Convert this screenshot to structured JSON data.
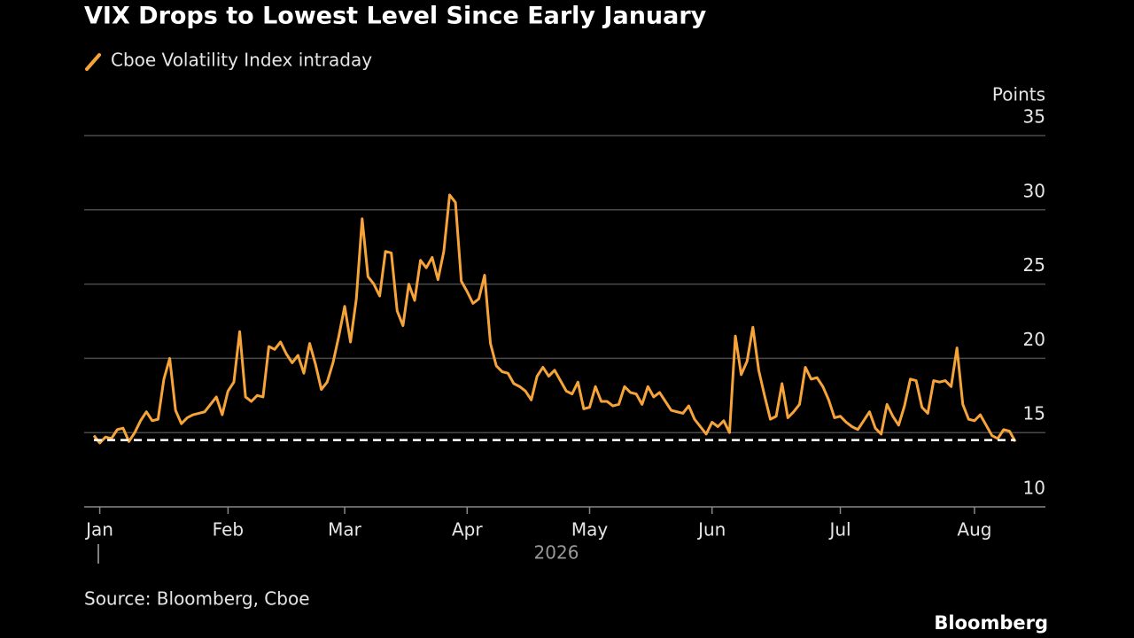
{
  "chart_data": {
    "type": "line",
    "title": "VIX Drops to Lowest Level Since Early January",
    "y_axis_label": "Points",
    "x_axis_label": "2026",
    "source": "Source: Bloomberg, Cboe",
    "brand": "Bloomberg",
    "series": [
      {
        "name": "Cboe Volatility Index intraday",
        "color": "#f6a43a",
        "values": [
          14.8,
          14.3,
          14.7,
          14.6,
          15.2,
          15.3,
          14.4,
          15.0,
          15.8,
          16.4,
          15.8,
          15.9,
          18.6,
          20.0,
          16.5,
          15.6,
          16.0,
          16.2,
          16.3,
          16.4,
          16.9,
          17.4,
          16.2,
          17.8,
          18.4,
          21.8,
          17.4,
          17.1,
          17.5,
          17.4,
          20.8,
          20.6,
          21.1,
          20.3,
          19.7,
          20.2,
          19.0,
          21.0,
          19.6,
          17.9,
          18.4,
          19.7,
          21.5,
          23.5,
          21.1,
          24.0,
          29.4,
          25.5,
          25.0,
          24.2,
          27.2,
          27.1,
          23.2,
          22.2,
          25.0,
          23.9,
          26.6,
          26.1,
          26.8,
          25.3,
          27.2,
          31.0,
          30.5,
          25.2,
          24.5,
          23.7,
          24.0,
          25.6,
          21.0,
          19.5,
          19.1,
          19.0,
          18.3,
          18.1,
          17.8,
          17.2,
          18.8,
          19.4,
          18.8,
          19.2,
          18.5,
          17.8,
          17.6,
          18.4,
          16.6,
          16.7,
          18.1,
          17.1,
          17.1,
          16.8,
          16.9,
          18.1,
          17.7,
          17.6,
          16.9,
          18.1,
          17.4,
          17.7,
          17.1,
          16.5,
          16.4,
          16.3,
          16.8,
          15.9,
          15.4,
          14.9,
          15.7,
          15.4,
          15.8,
          15.0,
          21.5,
          18.9,
          19.8,
          22.1,
          19.2,
          17.5,
          15.9,
          16.1,
          18.3,
          16.0,
          16.4,
          16.9,
          19.4,
          18.6,
          18.7,
          18.1,
          17.2,
          16.0,
          16.1,
          15.7,
          15.4,
          15.2,
          15.8,
          16.4,
          15.3,
          14.9,
          16.9,
          16.1,
          15.5,
          16.8,
          18.6,
          18.5,
          16.7,
          16.3,
          18.5,
          18.4,
          18.5,
          18.1,
          20.7,
          16.9,
          15.9,
          15.8,
          16.2,
          15.5,
          14.8,
          14.6,
          15.2,
          15.1,
          14.4
        ]
      }
    ],
    "reference_line": 14.5,
    "xlim": [
      0,
      158
    ],
    "xticks": [
      {
        "value": 1,
        "label": "Jan"
      },
      {
        "value": 23,
        "label": "Feb"
      },
      {
        "value": 43,
        "label": "Mar"
      },
      {
        "value": 64,
        "label": "Apr"
      },
      {
        "value": 85,
        "label": "May"
      },
      {
        "value": 106,
        "label": "Jun"
      },
      {
        "value": 128,
        "label": "Jul"
      },
      {
        "value": 151,
        "label": "Aug"
      }
    ],
    "ylim": [
      10,
      35
    ],
    "yticks": [
      10,
      15,
      20,
      25,
      30,
      35
    ],
    "grid": true
  }
}
